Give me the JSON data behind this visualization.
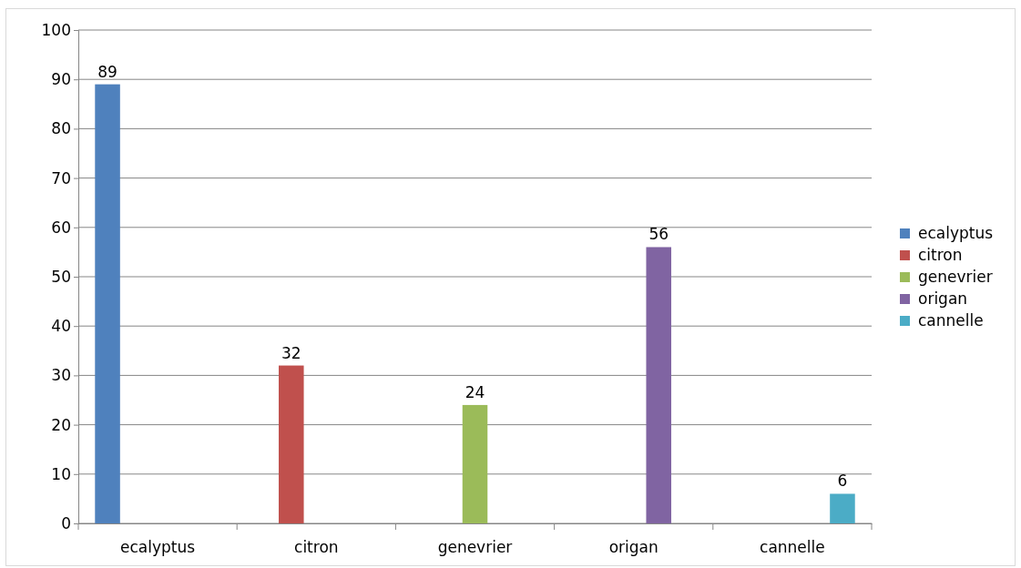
{
  "chart_data": {
    "type": "bar",
    "categories": [
      "ecalyptus",
      "citron",
      "genevrier",
      "origan",
      "cannelle"
    ],
    "series": [
      {
        "name": "ecalyptus",
        "color": "#4f81bd",
        "values": [
          89,
          null,
          null,
          null,
          null
        ]
      },
      {
        "name": "citron",
        "color": "#c0504d",
        "values": [
          null,
          32,
          null,
          null,
          null
        ]
      },
      {
        "name": "genevrier",
        "color": "#9bbb59",
        "values": [
          null,
          null,
          24,
          null,
          null
        ]
      },
      {
        "name": "origan",
        "color": "#8064a2",
        "values": [
          null,
          null,
          null,
          56,
          null
        ]
      },
      {
        "name": "cannelle",
        "color": "#4bacc6",
        "values": [
          null,
          null,
          null,
          null,
          6
        ]
      }
    ],
    "ylim": [
      0,
      100
    ],
    "yticks": [
      0,
      10,
      20,
      30,
      40,
      50,
      60,
      70,
      80,
      90,
      100
    ],
    "grid": "y",
    "legend": "right",
    "data_labels": true
  }
}
